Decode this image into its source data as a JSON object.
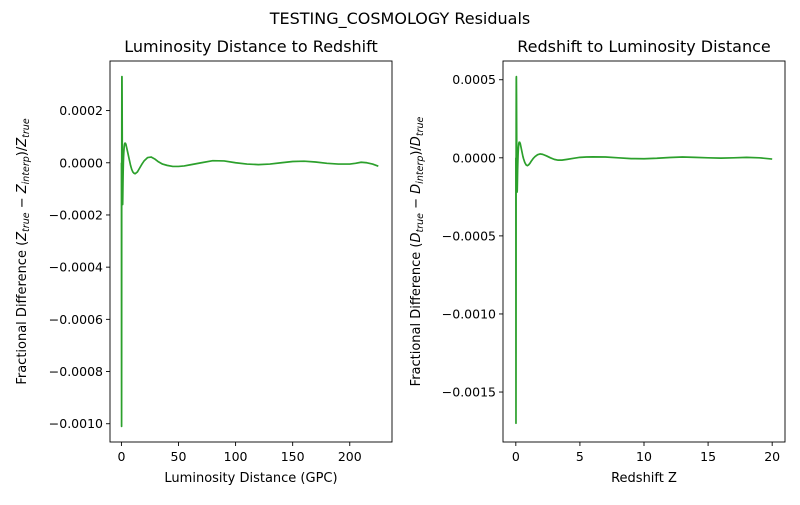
{
  "figure": {
    "title": "TESTING_COSMOLOGY Residuals"
  },
  "chart_data": [
    {
      "type": "line",
      "title": "Luminosity Distance to Redshift",
      "xlabel": "Luminosity Distance (GPC)",
      "ylabel": "Fractional Difference (Z_true − Z_interp)/Z_true",
      "ylabel_parts": [
        "Fractional Difference (",
        "Z",
        "true",
        " − ",
        "Z",
        "interp",
        ")/",
        "Z",
        "true"
      ],
      "xlim": [
        -10,
        237
      ],
      "ylim": [
        -0.00107,
        0.00039
      ],
      "xticks": [
        0,
        50,
        100,
        150,
        200
      ],
      "xtick_labels": [
        "0",
        "50",
        "100",
        "150",
        "200"
      ],
      "yticks": [
        -0.001,
        -0.0008,
        -0.0006,
        -0.0004,
        -0.0002,
        0.0,
        0.0002
      ],
      "ytick_labels": [
        "−0.0010",
        "−0.0008",
        "−0.0006",
        "−0.0004",
        "−0.0002",
        "0.0000",
        "0.0002"
      ],
      "color": "#2ca02c",
      "series": [
        {
          "x": [
            0.04,
            0.07,
            0.11,
            0.15,
            0.2,
            0.25,
            0.32,
            0.4,
            0.5,
            0.6,
            0.7,
            0.8,
            0.9,
            1.0,
            1.1,
            1.2,
            1.35,
            1.5,
            1.7,
            1.9,
            2.1,
            2.4,
            2.7,
            3.0,
            3.5,
            4.0,
            4.5,
            5.0,
            5.5,
            6.0,
            7.0,
            8.0,
            9.0,
            10.0,
            11.0,
            12.0,
            14.0,
            16.0,
            18.0,
            20.0,
            23.0,
            26.0,
            29.0,
            32.0,
            36.0,
            40.0,
            45.0,
            50.0,
            55.0,
            60.0,
            70.0,
            80.0,
            90.0,
            100.0,
            110.0,
            120.0,
            130.0,
            140.0,
            150.0,
            160.0,
            170.0,
            180.0,
            190.0,
            200.0,
            205.0,
            210.0,
            215.0,
            220.0,
            225.0
          ],
          "y": [
            0.0,
            -0.0003,
            -0.00075,
            -0.00101,
            -0.0007,
            -0.0001,
            0.00015,
            0.00033,
            0.00033,
            0.00025,
            0.00012,
            0.0,
            -0.0001,
            -0.00015,
            -0.00016,
            -0.00013,
            -8e-05,
            -4e-05,
            0.0,
            2.5e-05,
            4e-05,
            6e-05,
            7e-05,
            7.5e-05,
            7.5e-05,
            7e-05,
            6e-05,
            5e-05,
            4e-05,
            3e-05,
            1e-05,
            -1e-05,
            -2.5e-05,
            -3.5e-05,
            -4e-05,
            -4.2e-05,
            -3.5e-05,
            -2e-05,
            -5e-06,
            8e-06,
            2e-05,
            2.2e-05,
            1.5e-05,
            5e-06,
            -5e-06,
            -1e-05,
            -1.4e-05,
            -1.4e-05,
            -1.2e-05,
            -8e-06,
            0.0,
            8e-06,
            7e-06,
            0.0,
            -5e-06,
            -7e-06,
            -5e-06,
            0.0,
            5e-06,
            6e-06,
            3e-06,
            -2e-06,
            -5e-06,
            -5e-06,
            -2e-06,
            2e-06,
            0.0,
            -5e-06,
            -1.3e-05
          ]
        }
      ]
    },
    {
      "type": "line",
      "title": "Redshift to Luminosity Distance",
      "xlabel": "Redshift Z",
      "ylabel": "Fractional Difference (D_true − D_interp)/D_true",
      "ylabel_parts": [
        "Fractional Difference (",
        "D",
        "true",
        " − ",
        "D",
        "interp",
        ")/",
        "D",
        "true"
      ],
      "xlim": [
        -1.0,
        21.0
      ],
      "ylim": [
        -0.00182,
        0.00062
      ],
      "xticks": [
        0,
        5,
        10,
        15,
        20
      ],
      "xtick_labels": [
        "0",
        "5",
        "10",
        "15",
        "20"
      ],
      "yticks": [
        -0.0015,
        -0.001,
        -0.0005,
        0.0,
        0.0005
      ],
      "ytick_labels": [
        "−0.0015",
        "−0.0010",
        "−0.0005",
        "0.0000",
        "0.0005"
      ],
      "color": "#2ca02c",
      "series": [
        {
          "x": [
            0.004,
            0.007,
            0.01,
            0.013,
            0.017,
            0.022,
            0.028,
            0.035,
            0.045,
            0.055,
            0.065,
            0.075,
            0.085,
            0.095,
            0.11,
            0.125,
            0.14,
            0.16,
            0.18,
            0.2,
            0.23,
            0.26,
            0.3,
            0.35,
            0.4,
            0.45,
            0.5,
            0.55,
            0.6,
            0.7,
            0.8,
            0.9,
            1.0,
            1.1,
            1.2,
            1.35,
            1.5,
            1.7,
            1.9,
            2.1,
            2.4,
            2.7,
            3.0,
            3.3,
            3.6,
            4.0,
            4.5,
            5.0,
            5.5,
            6.0,
            7.0,
            8.0,
            9.0,
            10.0,
            11.0,
            12.0,
            13.0,
            14.0,
            15.0,
            16.0,
            17.0,
            18.0,
            19.0,
            20.0
          ],
          "y": [
            0.0,
            -0.0005,
            -0.00125,
            -0.0017,
            -0.0012,
            -0.0002,
            0.00025,
            0.00051,
            0.00052,
            0.0004,
            0.0002,
            0.0,
            -0.00015,
            -0.00022,
            -0.00021,
            -0.00015,
            -8e-05,
            -2e-05,
            3e-05,
            6e-05,
            9e-05,
            0.0001,
            0.0001,
            9e-05,
            7e-05,
            5e-05,
            3e-05,
            1e-05,
            -5e-06,
            -3e-05,
            -4.5e-05,
            -5e-05,
            -4.5e-05,
            -3.5e-05,
            -2.2e-05,
            -5e-06,
            8e-06,
            2e-05,
            2.5e-05,
            2.2e-05,
            1.2e-05,
            0.0,
            -1e-05,
            -1.5e-05,
            -1.5e-05,
            -1e-05,
            -3e-06,
            3e-06,
            5e-06,
            6e-06,
            5e-06,
            0.0,
            -5e-06,
            -6e-06,
            -3e-06,
            2e-06,
            5e-06,
            3e-06,
            0.0,
            -2e-06,
            0.0,
            3e-06,
            0.0,
            -8e-06
          ]
        }
      ]
    }
  ]
}
